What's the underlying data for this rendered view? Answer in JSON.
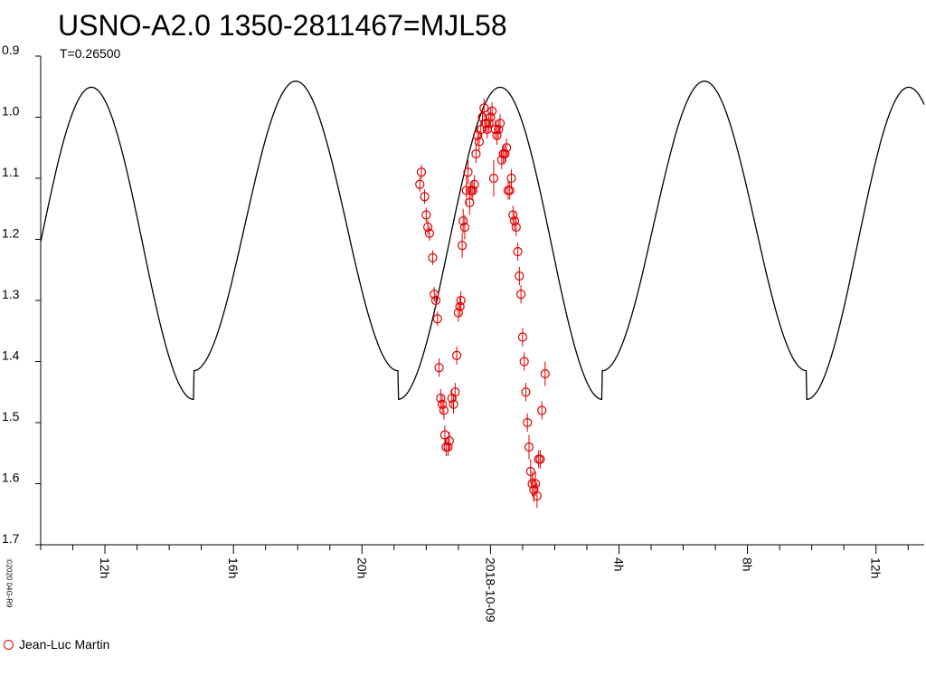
{
  "chart_data": {
    "type": "line",
    "title": "USNO-A2.0 1350-2811467=MJL58",
    "subtitle": "T=0.26500",
    "copyright": "©2020 04G-R9",
    "xlabel": "",
    "ylabel": "",
    "y_inverted": true,
    "ylim": [
      0.9,
      1.7
    ],
    "y_ticks": [
      "0.9",
      "1.0",
      "1.1",
      "1.2",
      "1.3",
      "1.4",
      "1.5",
      "1.6",
      "1.7"
    ],
    "x_unit": "hours relative to 2018-10-09 00:00",
    "xlim": [
      -14,
      13.5
    ],
    "x_ticks": [
      {
        "x": -12,
        "label": "12h"
      },
      {
        "x": -8,
        "label": "16h"
      },
      {
        "x": -4,
        "label": "20h"
      },
      {
        "x": 0,
        "label": "2018-10-09"
      },
      {
        "x": 4,
        "label": "4h"
      },
      {
        "x": 8,
        "label": "8h"
      },
      {
        "x": 12,
        "label": "12h"
      }
    ],
    "model": {
      "name": "",
      "color": "#000000",
      "period_hours": 6.36,
      "max_epoch_hours": 0.3,
      "mean": 1.19,
      "amplitude": 0.245,
      "alternation": 0.04,
      "max_level_pair": [
        0.943,
        0.953
      ]
    },
    "series": [
      {
        "name": "Jean-Luc Martin",
        "color": "#e00000",
        "marker": "open-circle",
        "points": [
          [
            -2.2,
            1.11,
            0.012
          ],
          [
            -2.15,
            1.09,
            0.012
          ],
          [
            -2.05,
            1.13,
            0.012
          ],
          [
            -2.0,
            1.16,
            0.012
          ],
          [
            -1.95,
            1.18,
            0.012
          ],
          [
            -1.9,
            1.19,
            0.012
          ],
          [
            -1.8,
            1.23,
            0.012
          ],
          [
            -1.75,
            1.29,
            0.012
          ],
          [
            -1.7,
            1.3,
            0.012
          ],
          [
            -1.65,
            1.33,
            0.012
          ],
          [
            -1.6,
            1.41,
            0.015
          ],
          [
            -1.55,
            1.46,
            0.015
          ],
          [
            -1.5,
            1.47,
            0.015
          ],
          [
            -1.45,
            1.48,
            0.015
          ],
          [
            -1.42,
            1.52,
            0.015
          ],
          [
            -1.38,
            1.54,
            0.015
          ],
          [
            -1.32,
            1.54,
            0.015
          ],
          [
            -1.28,
            1.53,
            0.015
          ],
          [
            -1.2,
            1.46,
            0.015
          ],
          [
            -1.15,
            1.47,
            0.015
          ],
          [
            -1.1,
            1.45,
            0.015
          ],
          [
            -1.05,
            1.39,
            0.015
          ],
          [
            -1.0,
            1.32,
            0.015
          ],
          [
            -0.95,
            1.31,
            0.015
          ],
          [
            -0.92,
            1.3,
            0.015
          ],
          [
            -0.88,
            1.21,
            0.02
          ],
          [
            -0.85,
            1.17,
            0.02
          ],
          [
            -0.8,
            1.18,
            0.02
          ],
          [
            -0.75,
            1.12,
            0.025
          ],
          [
            -0.7,
            1.09,
            0.02
          ],
          [
            -0.65,
            1.14,
            0.02
          ],
          [
            -0.6,
            1.12,
            0.015
          ],
          [
            -0.55,
            1.12,
            0.015
          ],
          [
            -0.5,
            1.11,
            0.015
          ],
          [
            -0.45,
            1.06,
            0.015
          ],
          [
            -0.4,
            1.03,
            0.015
          ],
          [
            -0.35,
            1.04,
            0.015
          ],
          [
            -0.3,
            1.02,
            0.015
          ],
          [
            -0.25,
            1.0,
            0.015
          ],
          [
            -0.2,
            0.985,
            0.015
          ],
          [
            -0.15,
            1.01,
            0.015
          ],
          [
            -0.1,
            1.02,
            0.015
          ],
          [
            -0.05,
            1.01,
            0.015
          ],
          [
            0.0,
            1.0,
            0.015
          ],
          [
            0.05,
            0.99,
            0.015
          ],
          [
            0.1,
            1.1,
            0.03
          ],
          [
            0.15,
            1.02,
            0.015
          ],
          [
            0.2,
            1.03,
            0.015
          ],
          [
            0.25,
            1.02,
            0.015
          ],
          [
            0.3,
            1.01,
            0.015
          ],
          [
            0.35,
            1.07,
            0.015
          ],
          [
            0.4,
            1.06,
            0.015
          ],
          [
            0.45,
            1.06,
            0.015
          ],
          [
            0.5,
            1.05,
            0.015
          ],
          [
            0.55,
            1.12,
            0.015
          ],
          [
            0.6,
            1.12,
            0.015
          ],
          [
            0.65,
            1.1,
            0.015
          ],
          [
            0.7,
            1.16,
            0.015
          ],
          [
            0.75,
            1.17,
            0.015
          ],
          [
            0.8,
            1.18,
            0.015
          ],
          [
            0.85,
            1.22,
            0.015
          ],
          [
            0.9,
            1.26,
            0.015
          ],
          [
            0.95,
            1.29,
            0.015
          ],
          [
            1.0,
            1.36,
            0.015
          ],
          [
            1.05,
            1.4,
            0.015
          ],
          [
            1.1,
            1.45,
            0.015
          ],
          [
            1.15,
            1.5,
            0.015
          ],
          [
            1.2,
            1.54,
            0.02
          ],
          [
            1.25,
            1.58,
            0.02
          ],
          [
            1.3,
            1.6,
            0.02
          ],
          [
            1.35,
            1.61,
            0.02
          ],
          [
            1.4,
            1.6,
            0.02
          ],
          [
            1.45,
            1.62,
            0.02
          ],
          [
            1.5,
            1.56,
            0.015
          ],
          [
            1.55,
            1.56,
            0.015
          ],
          [
            1.6,
            1.48,
            0.015
          ],
          [
            1.7,
            1.42,
            0.02
          ]
        ]
      }
    ],
    "legend": {
      "label": "Jean-Luc Martin",
      "position": "bottom-left"
    }
  }
}
